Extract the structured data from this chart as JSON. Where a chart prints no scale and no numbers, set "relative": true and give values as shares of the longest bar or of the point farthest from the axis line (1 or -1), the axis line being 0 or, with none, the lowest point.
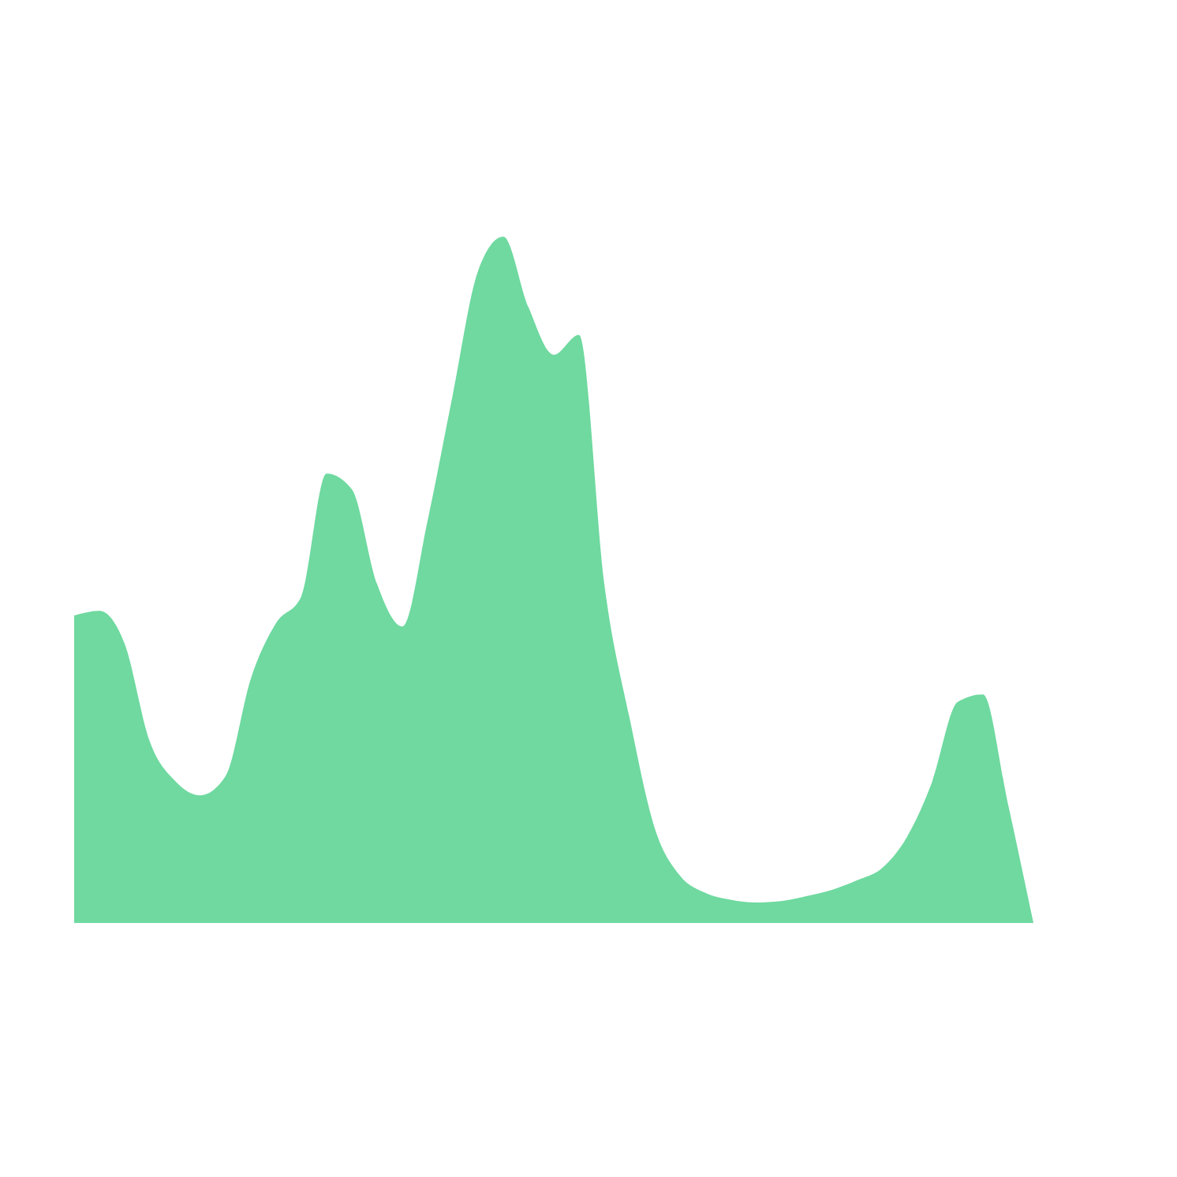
{
  "chart_data": {
    "type": "area",
    "relative": true,
    "color": "#5fd596",
    "categories": [
      null,
      null,
      null,
      null,
      null,
      null,
      null,
      null,
      null,
      null,
      null,
      null,
      null,
      null,
      null,
      null,
      null,
      null,
      null,
      null,
      null,
      null,
      null,
      null,
      null,
      null,
      null,
      null,
      null,
      null,
      null,
      null,
      null,
      null,
      null,
      null,
      null,
      null,
      null
    ],
    "values": [
      0.448,
      0.455,
      0.407,
      0.264,
      0.207,
      0.186,
      0.214,
      0.356,
      0.437,
      0.476,
      0.655,
      0.632,
      0.494,
      0.432,
      0.586,
      0.77,
      0.95,
      1,
      0.897,
      0.828,
      0.857,
      0.494,
      0.299,
      0.138,
      0.069,
      0.044,
      0.034,
      0.03,
      0.032,
      0.039,
      0.048,
      0.062,
      0.08,
      0.126,
      0.207,
      0.322,
      0.333,
      0.172,
      0
    ]
  }
}
